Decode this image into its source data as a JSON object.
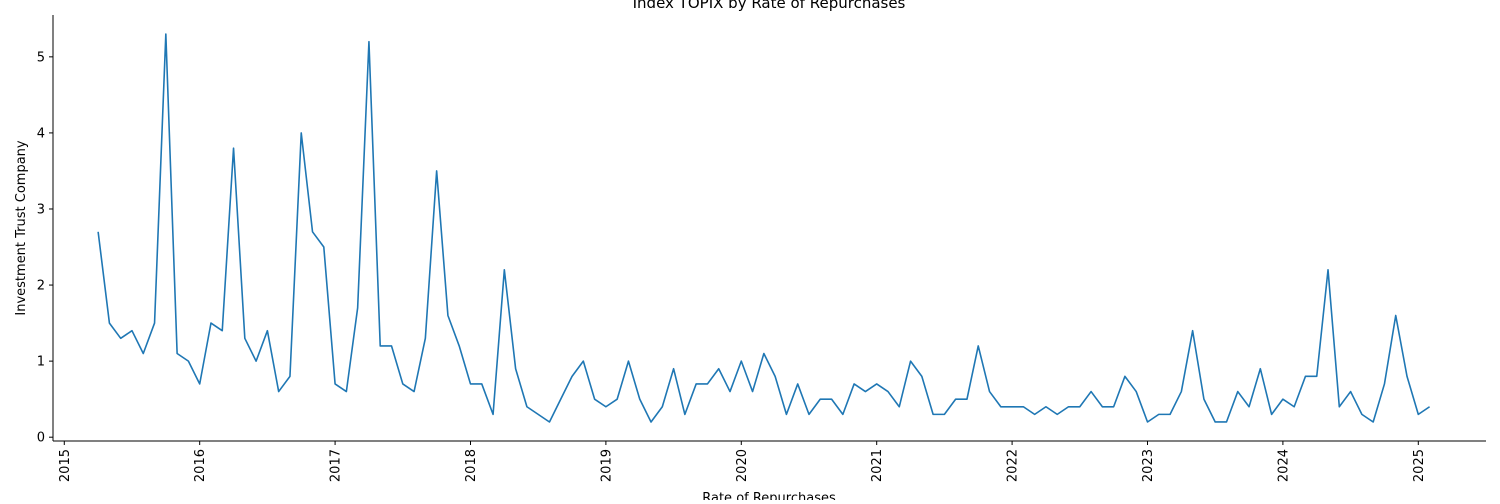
{
  "chart_data": {
    "type": "line",
    "title": "Index TOPIX by Rate of Repurchases",
    "xlabel": "Rate of Repurchases",
    "ylabel": "Investment Trust Company",
    "x_ticks": [
      "2015",
      "2016",
      "2017",
      "2018",
      "2019",
      "2020",
      "2021",
      "2022",
      "2023",
      "2024",
      "2025"
    ],
    "y_ticks": [
      "0",
      "1",
      "2",
      "3",
      "4",
      "5"
    ],
    "xlim": [
      "2014-12",
      "2025-07"
    ],
    "ylim": [
      -0.05,
      5.55
    ],
    "grid": false,
    "line_color": "#1f77b4",
    "series": [
      {
        "x": [
          "2015-04",
          "2015-05",
          "2015-06",
          "2015-07",
          "2015-08",
          "2015-09",
          "2015-10",
          "2015-11",
          "2015-12",
          "2016-01",
          "2016-02",
          "2016-03",
          "2016-04",
          "2016-05",
          "2016-06",
          "2016-07",
          "2016-08",
          "2016-09",
          "2016-10",
          "2016-11",
          "2016-12",
          "2017-01",
          "2017-02",
          "2017-03",
          "2017-04",
          "2017-05",
          "2017-06",
          "2017-07",
          "2017-08",
          "2017-09",
          "2017-10",
          "2017-11",
          "2017-12",
          "2018-01",
          "2018-02",
          "2018-03",
          "2018-04",
          "2018-05",
          "2018-06",
          "2018-07",
          "2018-08",
          "2018-09",
          "2018-10",
          "2018-11",
          "2018-12",
          "2019-01",
          "2019-02",
          "2019-03",
          "2019-04",
          "2019-05",
          "2019-06",
          "2019-07",
          "2019-08",
          "2019-09",
          "2019-10",
          "2019-11",
          "2019-12",
          "2020-01",
          "2020-02",
          "2020-03",
          "2020-04",
          "2020-05",
          "2020-06",
          "2020-07",
          "2020-08",
          "2020-09",
          "2020-10",
          "2020-11",
          "2020-12",
          "2021-01",
          "2021-02",
          "2021-03",
          "2021-04",
          "2021-05",
          "2021-06",
          "2021-07",
          "2021-08",
          "2021-09",
          "2021-10",
          "2021-11",
          "2021-12",
          "2022-01",
          "2022-02",
          "2022-03",
          "2022-04",
          "2022-05",
          "2022-06",
          "2022-07",
          "2022-08",
          "2022-09",
          "2022-10",
          "2022-11",
          "2022-12",
          "2023-01",
          "2023-02",
          "2023-03",
          "2023-04",
          "2023-05",
          "2023-06",
          "2023-07",
          "2023-08",
          "2023-09",
          "2023-10",
          "2023-11",
          "2023-12",
          "2024-01",
          "2024-02",
          "2024-03",
          "2024-04",
          "2024-05",
          "2024-06",
          "2024-07",
          "2024-08",
          "2024-09",
          "2024-10",
          "2024-11",
          "2024-12",
          "2025-01",
          "2025-02"
        ],
        "y": [
          2.7,
          1.5,
          1.3,
          1.4,
          1.1,
          1.5,
          5.3,
          1.1,
          1.0,
          0.7,
          1.5,
          1.4,
          3.8,
          1.3,
          1.0,
          1.4,
          0.6,
          0.8,
          4.0,
          2.7,
          2.5,
          0.7,
          0.6,
          1.7,
          5.2,
          1.2,
          1.2,
          0.7,
          0.6,
          1.3,
          3.5,
          1.6,
          1.2,
          0.7,
          0.7,
          0.3,
          2.2,
          0.9,
          0.4,
          0.3,
          0.2,
          0.5,
          0.8,
          1.0,
          0.5,
          0.4,
          0.5,
          1.0,
          0.5,
          0.2,
          0.4,
          0.9,
          0.3,
          0.7,
          0.7,
          0.9,
          0.6,
          1.0,
          0.6,
          1.1,
          0.8,
          0.3,
          0.7,
          0.3,
          0.5,
          0.5,
          0.3,
          0.7,
          0.6,
          0.7,
          0.6,
          0.4,
          1.0,
          0.8,
          0.3,
          0.3,
          0.5,
          0.5,
          1.2,
          0.6,
          0.4,
          0.4,
          0.4,
          0.3,
          0.4,
          0.3,
          0.4,
          0.4,
          0.6,
          0.4,
          0.4,
          0.8,
          0.6,
          0.2,
          0.3,
          0.3,
          0.6,
          1.4,
          0.5,
          0.2,
          0.2,
          0.6,
          0.4,
          0.9,
          0.3,
          0.5,
          0.4,
          0.8,
          0.8,
          2.2,
          0.4,
          0.6,
          0.3,
          0.2,
          0.7,
          1.6,
          0.8,
          0.3,
          0.4
        ]
      }
    ]
  }
}
